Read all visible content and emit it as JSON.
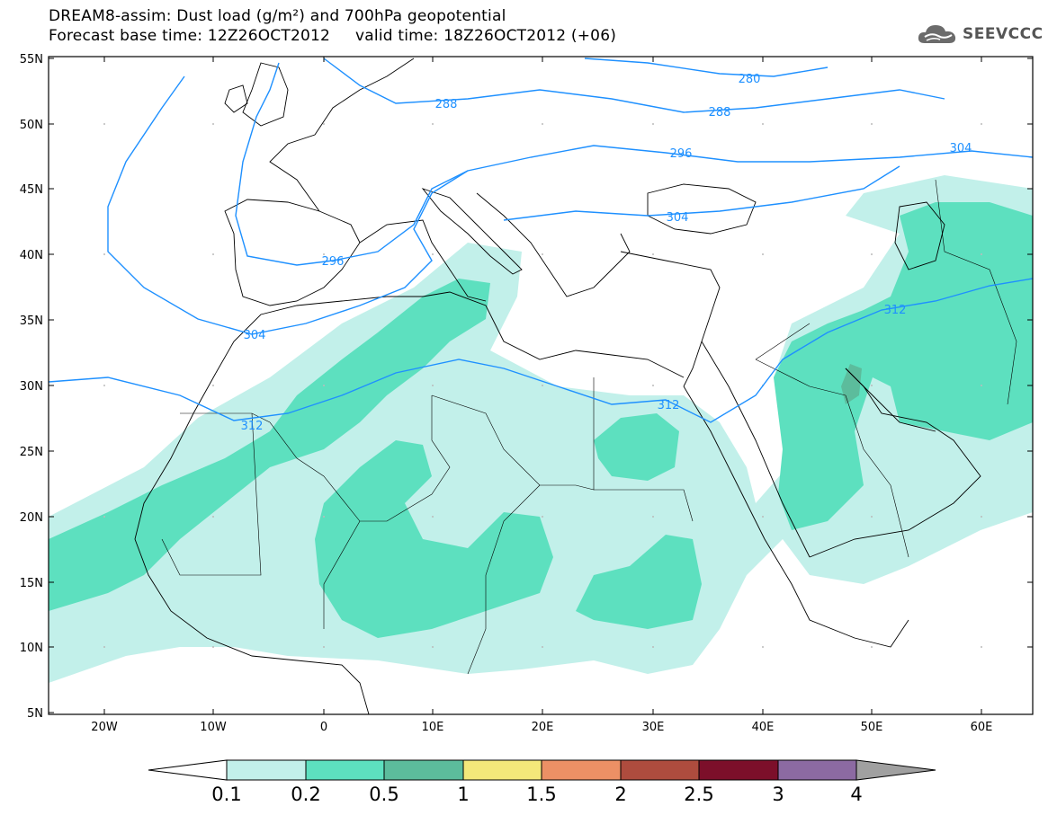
{
  "title": {
    "line1": "DREAM8-assim: Dust load (g/m²) and 700hPa geopotential",
    "line2": "Forecast base time: 12Z26OCT2012     valid time: 18Z26OCT2012 (+06)"
  },
  "logo": {
    "text": "SEEVCCC",
    "icon": "cloud-icon"
  },
  "map": {
    "lat_labels": [
      "55N",
      "50N",
      "45N",
      "40N",
      "35N",
      "30N",
      "25N",
      "20N",
      "15N",
      "10N",
      "5N"
    ],
    "lon_labels": [
      "20W",
      "10W",
      "0",
      "10E",
      "20E",
      "30E",
      "40E",
      "50E",
      "60E"
    ],
    "contour_labels": [
      "280",
      "288",
      "288",
      "296",
      "296",
      "304",
      "304",
      "304",
      "312",
      "312",
      "312"
    ],
    "colors": {
      "coast": "#000000",
      "contour": "#1e90ff",
      "grid_dots": "#bbbbbb"
    }
  },
  "colorbar": {
    "labels": [
      "0.1",
      "0.2",
      "0.5",
      "1",
      "1.5",
      "2",
      "2.5",
      "3",
      "4"
    ],
    "colors": [
      "#c2f0ea",
      "#5de0bf",
      "#5cbc9c",
      "#f4e87a",
      "#ec9065",
      "#ae4c3e",
      "#7c0f2a",
      "#8c6aa2",
      "#a0a0a0"
    ]
  }
}
